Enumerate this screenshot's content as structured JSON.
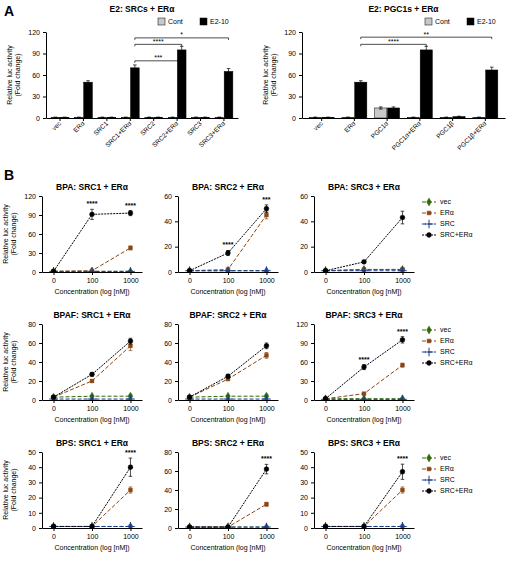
{
  "chart_data": [
    {
      "type": "bar",
      "panel": "A",
      "title": "E2: SRCs + ERα",
      "categories": [
        "vec",
        "ERα",
        "SRC1",
        "SRC1+ERα",
        "SRC2",
        "SRC2+ERα",
        "SRC3",
        "SRC3+ERα"
      ],
      "series": [
        {
          "name": "Cont",
          "color": "#c8c8c8",
          "values": [
            1,
            1,
            1,
            1,
            1,
            1,
            1,
            1
          ],
          "errors": [
            0.2,
            0.2,
            0.2,
            0.2,
            0.2,
            0.2,
            0.2,
            0.2
          ]
        },
        {
          "name": "E2-10",
          "color": "#000000",
          "values": [
            1,
            50,
            1,
            70,
            1,
            95,
            1,
            65
          ],
          "errors": [
            0.2,
            2,
            0.2,
            4,
            0.2,
            5,
            0.2,
            4
          ]
        }
      ],
      "ylabel": "Relative luc activity\n(Fold change)",
      "ylim": [
        0,
        120
      ],
      "yticks": [
        0,
        30,
        60,
        90,
        120
      ],
      "grid": false,
      "legend": "top",
      "annotations": [
        {
          "text": "***",
          "from": "SRC1+ERα",
          "to": "SRC2+ERα",
          "series": "E2-10",
          "y": 77
        },
        {
          "text": "****",
          "from": "SRC1+ERα",
          "to": "SRC2+ERα",
          "series": "E2-10",
          "y": 100
        },
        {
          "text": "*",
          "from": "SRC1+ERα",
          "to": "SRC3+ERα",
          "series": "E2-10",
          "y": 109
        }
      ]
    },
    {
      "type": "bar",
      "title": "E2: PGC1s + ERα",
      "categories": [
        "vec",
        "ERα",
        "PGC1α",
        "PGC1α+ERα",
        "PGC1β",
        "PGC1β+ERα"
      ],
      "series": [
        {
          "name": "Cont",
          "color": "#c8c8c8",
          "values": [
            1,
            1,
            14,
            1,
            1,
            1
          ],
          "errors": [
            0.2,
            0.2,
            1.5,
            0.2,
            0.2,
            0.2
          ]
        },
        {
          "name": "E2-10",
          "color": "#000000",
          "values": [
            1,
            50,
            14,
            95,
            2,
            67
          ],
          "errors": [
            0.2,
            2,
            1.5,
            5,
            0.5,
            4
          ]
        }
      ],
      "ylabel": "Relative luc activity\n(Fold change)",
      "ylim": [
        0,
        120
      ],
      "yticks": [
        0,
        30,
        60,
        90,
        120
      ],
      "grid": false,
      "legend": "top",
      "annotations": [
        {
          "text": "****",
          "from": "ERα",
          "to": "PGC1α+ERα",
          "series": "E2-10",
          "y": 100
        },
        {
          "text": "**",
          "from": "ERα",
          "to": "PGC1β+ERα",
          "series": "E2-10",
          "y": 110
        }
      ]
    },
    {
      "type": "line",
      "panel": "B",
      "title": "BPA: SRC1 + ERα",
      "categories": [
        "0",
        "100",
        "1000"
      ],
      "xlabel": "Concentration (log [nM])",
      "ylabel": "Relative luc activity\n(Fold change)",
      "ylim": [
        0,
        120
      ],
      "yticks": [
        0,
        30,
        60,
        90,
        120
      ],
      "grid": false,
      "series": [
        {
          "name": "vec",
          "color": "#2E6B00",
          "marker": "diamond",
          "line_style": "dashed",
          "values": [
            1,
            1,
            1
          ],
          "errors": [
            0.2,
            0.2,
            0.3
          ]
        },
        {
          "name": "ERα",
          "color": "#8B4513",
          "marker": "square",
          "line_style": "dashed",
          "values": [
            1,
            2,
            38
          ],
          "errors": [
            0.2,
            0.3,
            3
          ]
        },
        {
          "name": "SRC",
          "color": "#1A3A8A",
          "marker": "plus",
          "line_style": "dashed",
          "values": [
            1,
            1,
            1
          ],
          "errors": [
            0.2,
            0.2,
            0.2
          ]
        },
        {
          "name": "SRC+ERα",
          "color": "#000000",
          "marker": "circle",
          "line_style": "dotted",
          "values": [
            1,
            91,
            93
          ],
          "errors": [
            0.2,
            8,
            4
          ]
        }
      ],
      "annotations": [
        {
          "text": "****",
          "category": "100"
        },
        {
          "text": "****",
          "category": "1000"
        }
      ]
    },
    {
      "type": "line",
      "title": "BPA: SRC2 + ERα",
      "categories": [
        "0",
        "100",
        "1000"
      ],
      "xlabel": "Concentration (log [nM])",
      "ylim": [
        0,
        60
      ],
      "yticks": [
        0,
        20,
        40,
        60
      ],
      "grid": false,
      "series": [
        {
          "name": "vec",
          "color": "#2E6B00",
          "marker": "diamond",
          "line_style": "dashed",
          "values": [
            1,
            1,
            1
          ],
          "errors": [
            0.2,
            0.2,
            0.3
          ]
        },
        {
          "name": "ERα",
          "color": "#8B4513",
          "marker": "square",
          "line_style": "dashed",
          "values": [
            1,
            2,
            45
          ],
          "errors": [
            0.2,
            0.3,
            3
          ]
        },
        {
          "name": "SRC",
          "color": "#1A3A8A",
          "marker": "plus",
          "line_style": "dashed",
          "values": [
            1,
            1,
            1
          ],
          "errors": [
            0.2,
            0.2,
            0.2
          ]
        },
        {
          "name": "SRC+ERα",
          "color": "#000000",
          "marker": "circle",
          "line_style": "dotted",
          "values": [
            1,
            15,
            50
          ],
          "errors": [
            0.2,
            2,
            3
          ]
        }
      ],
      "annotations": [
        {
          "text": "****",
          "category": "100"
        },
        {
          "text": "***",
          "category": "1000"
        }
      ]
    },
    {
      "type": "line",
      "title": "BPA: SRC3 + ERα",
      "categories": [
        "0",
        "100",
        "1000"
      ],
      "xlabel": "Concentration (log [nM])",
      "legend": "right",
      "ylim": [
        0,
        60
      ],
      "yticks": [
        0,
        20,
        40,
        60
      ],
      "grid": false,
      "series": [
        {
          "name": "vec",
          "color": "#2E6B00",
          "marker": "diamond",
          "line_style": "dashed",
          "values": [
            1,
            2,
            2
          ],
          "errors": [
            0.2,
            0.3,
            0.3
          ]
        },
        {
          "name": "ERα",
          "color": "#8B4513",
          "marker": "square",
          "line_style": "dashed",
          "values": [
            1,
            2,
            2
          ],
          "errors": [
            0.2,
            0.3,
            0.5
          ]
        },
        {
          "name": "SRC",
          "color": "#1A3A8A",
          "marker": "plus",
          "line_style": "dashed",
          "values": [
            1,
            1,
            1
          ],
          "errors": [
            0.2,
            0.2,
            0.2
          ]
        },
        {
          "name": "SRC+ERα",
          "color": "#000000",
          "marker": "circle",
          "line_style": "dotted",
          "values": [
            1,
            8,
            43
          ],
          "errors": [
            0.2,
            1,
            5
          ]
        }
      ]
    },
    {
      "type": "line",
      "title": "BPAF: SRC1 + ERα",
      "categories": [
        "0",
        "100",
        "1000"
      ],
      "xlabel": "Concentration (log [nM])",
      "ylabel": "Relative luc activity\n(Fold change)",
      "ylim": [
        0,
        80
      ],
      "yticks": [
        0,
        20,
        40,
        60,
        80
      ],
      "grid": false,
      "series": [
        {
          "name": "vec",
          "color": "#2E6B00",
          "marker": "diamond",
          "line_style": "dashed",
          "values": [
            3,
            4,
            4
          ],
          "errors": [
            0.3,
            0.5,
            2
          ]
        },
        {
          "name": "ERα",
          "color": "#8B4513",
          "marker": "square",
          "line_style": "dashed",
          "values": [
            3,
            20,
            57
          ],
          "errors": [
            0.3,
            1,
            5
          ]
        },
        {
          "name": "SRC",
          "color": "#1A3A8A",
          "marker": "plus",
          "line_style": "dashed",
          "values": [
            1,
            1,
            1
          ],
          "errors": [
            0.2,
            0.2,
            0.2
          ]
        },
        {
          "name": "SRC+ERα",
          "color": "#000000",
          "marker": "circle",
          "line_style": "dotted",
          "values": [
            3,
            27,
            62
          ],
          "errors": [
            0.3,
            2,
            3
          ]
        }
      ]
    },
    {
      "type": "line",
      "title": "BPAF: SRC2 + ERα",
      "categories": [
        "0",
        "100",
        "1000"
      ],
      "xlabel": "Concentration (log [nM])",
      "ylim": [
        0,
        80
      ],
      "yticks": [
        0,
        20,
        40,
        60,
        80
      ],
      "grid": false,
      "series": [
        {
          "name": "vec",
          "color": "#2E6B00",
          "marker": "diamond",
          "line_style": "dashed",
          "values": [
            3,
            4,
            4
          ],
          "errors": [
            0.3,
            0.5,
            2
          ]
        },
        {
          "name": "ERα",
          "color": "#8B4513",
          "marker": "square",
          "line_style": "dashed",
          "values": [
            3,
            22,
            47
          ],
          "errors": [
            0.3,
            1,
            3
          ]
        },
        {
          "name": "SRC",
          "color": "#1A3A8A",
          "marker": "plus",
          "line_style": "dashed",
          "values": [
            1,
            1,
            1
          ],
          "errors": [
            0.2,
            0.2,
            0.2
          ]
        },
        {
          "name": "SRC+ERα",
          "color": "#000000",
          "marker": "circle",
          "line_style": "dotted",
          "values": [
            3,
            25,
            57
          ],
          "errors": [
            0.3,
            2,
            3
          ]
        }
      ]
    },
    {
      "type": "line",
      "title": "BPAF: SRC3 + ERα",
      "categories": [
        "0",
        "100",
        "1000"
      ],
      "xlabel": "Concentration (log [nM])",
      "legend": "right",
      "ylim": [
        0,
        120
      ],
      "yticks": [
        0,
        30,
        60,
        90,
        120
      ],
      "grid": false,
      "series": [
        {
          "name": "vec",
          "color": "#2E6B00",
          "marker": "diamond",
          "line_style": "dashed",
          "values": [
            2,
            2,
            2
          ],
          "errors": [
            0.2,
            0.5,
            2
          ]
        },
        {
          "name": "ERα",
          "color": "#8B4513",
          "marker": "square",
          "line_style": "dashed",
          "values": [
            2,
            10,
            55
          ],
          "errors": [
            0.2,
            1,
            3
          ]
        },
        {
          "name": "SRC",
          "color": "#1A3A8A",
          "marker": "plus",
          "line_style": "dashed",
          "values": [
            1,
            1,
            1
          ],
          "errors": [
            0.2,
            0.2,
            0.2
          ]
        },
        {
          "name": "SRC+ERα",
          "color": "#000000",
          "marker": "circle",
          "line_style": "dotted",
          "values": [
            2,
            52,
            95
          ],
          "errors": [
            0.2,
            4,
            5
          ]
        }
      ],
      "annotations": [
        {
          "text": "****",
          "category": "100"
        },
        {
          "text": "****",
          "category": "1000"
        }
      ]
    },
    {
      "type": "line",
      "title": "BPS: SRC1 + ERα",
      "categories": [
        "0",
        "100",
        "1000"
      ],
      "xlabel": "Concentration (log [nM])",
      "ylabel": "Relative luc activity\n(Fold change)",
      "ylim": [
        0,
        50
      ],
      "yticks": [
        0,
        10,
        20,
        30,
        40,
        50
      ],
      "grid": false,
      "series": [
        {
          "name": "vec",
          "color": "#2E6B00",
          "marker": "diamond",
          "line_style": "dashed",
          "values": [
            1,
            1,
            1
          ],
          "errors": [
            0.2,
            0.2,
            1
          ]
        },
        {
          "name": "ERα",
          "color": "#8B4513",
          "marker": "square",
          "line_style": "dashed",
          "values": [
            1,
            1,
            25
          ],
          "errors": [
            0.2,
            0.2,
            2
          ]
        },
        {
          "name": "SRC",
          "color": "#1A3A8A",
          "marker": "plus",
          "line_style": "dashed",
          "values": [
            1,
            1,
            1
          ],
          "errors": [
            0.2,
            0.2,
            0.2
          ]
        },
        {
          "name": "SRC+ERα",
          "color": "#000000",
          "marker": "circle",
          "line_style": "dotted",
          "values": [
            1,
            1,
            40
          ],
          "errors": [
            0.2,
            0.2,
            6
          ]
        }
      ],
      "annotations": [
        {
          "text": "****",
          "category": "1000"
        }
      ]
    },
    {
      "type": "line",
      "title": "BPS: SRC2 + ERα",
      "categories": [
        "0",
        "100",
        "1000"
      ],
      "xlabel": "Concentration (log [nM])",
      "ylim": [
        0,
        80
      ],
      "yticks": [
        0,
        20,
        40,
        60,
        80
      ],
      "grid": false,
      "series": [
        {
          "name": "vec",
          "color": "#2E6B00",
          "marker": "diamond",
          "line_style": "dashed",
          "values": [
            1,
            1,
            1
          ],
          "errors": [
            0.2,
            0.2,
            1
          ]
        },
        {
          "name": "ERα",
          "color": "#8B4513",
          "marker": "square",
          "line_style": "dashed",
          "values": [
            1,
            1,
            25
          ],
          "errors": [
            0.2,
            0.2,
            2
          ]
        },
        {
          "name": "SRC",
          "color": "#1A3A8A",
          "marker": "plus",
          "line_style": "dashed",
          "values": [
            1,
            1,
            1
          ],
          "errors": [
            0.2,
            0.2,
            0.2
          ]
        },
        {
          "name": "SRC+ERα",
          "color": "#000000",
          "marker": "circle",
          "line_style": "dotted",
          "values": [
            1,
            1,
            62
          ],
          "errors": [
            0.2,
            0.2,
            5
          ]
        }
      ],
      "annotations": [
        {
          "text": "****",
          "category": "1000"
        }
      ]
    },
    {
      "type": "line",
      "title": "BPS: SRC3 + ERα",
      "categories": [
        "0",
        "100",
        "1000"
      ],
      "xlabel": "Concentration (log [nM])",
      "legend": "right",
      "ylim": [
        0,
        50
      ],
      "yticks": [
        0,
        10,
        20,
        30,
        40,
        50
      ],
      "grid": false,
      "series": [
        {
          "name": "vec",
          "color": "#2E6B00",
          "marker": "diamond",
          "line_style": "dashed",
          "values": [
            1,
            1,
            1
          ],
          "errors": [
            0.2,
            0.2,
            1
          ]
        },
        {
          "name": "ERα",
          "color": "#8B4513",
          "marker": "square",
          "line_style": "dashed",
          "values": [
            1,
            1,
            25
          ],
          "errors": [
            0.2,
            0.2,
            2
          ]
        },
        {
          "name": "SRC",
          "color": "#1A3A8A",
          "marker": "plus",
          "line_style": "dashed",
          "values": [
            1,
            1,
            1
          ],
          "errors": [
            0.2,
            0.2,
            0.2
          ]
        },
        {
          "name": "SRC+ERα",
          "color": "#000000",
          "marker": "circle",
          "line_style": "dotted",
          "values": [
            1,
            1,
            37
          ],
          "errors": [
            0.2,
            0.2,
            5
          ]
        }
      ],
      "annotations": [
        {
          "text": "****",
          "category": "1000"
        }
      ]
    }
  ]
}
